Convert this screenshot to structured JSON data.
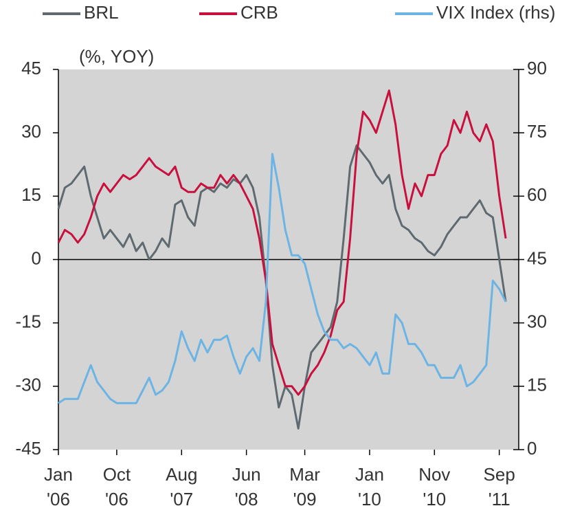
{
  "chart_data": {
    "type": "line",
    "annotation": "(%, YOY)",
    "x": [
      "2006-01",
      "2006-02",
      "2006-03",
      "2006-04",
      "2006-05",
      "2006-06",
      "2006-07",
      "2006-08",
      "2006-09",
      "2006-10",
      "2006-11",
      "2006-12",
      "2007-01",
      "2007-02",
      "2007-03",
      "2007-04",
      "2007-05",
      "2007-06",
      "2007-07",
      "2007-08",
      "2007-09",
      "2007-10",
      "2007-11",
      "2007-12",
      "2008-01",
      "2008-02",
      "2008-03",
      "2008-04",
      "2008-05",
      "2008-06",
      "2008-07",
      "2008-08",
      "2008-09",
      "2008-10",
      "2008-11",
      "2008-12",
      "2009-01",
      "2009-02",
      "2009-03",
      "2009-04",
      "2009-05",
      "2009-06",
      "2009-07",
      "2009-08",
      "2009-09",
      "2009-10",
      "2009-11",
      "2009-12",
      "2010-01",
      "2010-02",
      "2010-03",
      "2010-04",
      "2010-05",
      "2010-06",
      "2010-07",
      "2010-08",
      "2010-09",
      "2010-10",
      "2010-11",
      "2010-12",
      "2011-01",
      "2011-02",
      "2011-03",
      "2011-04",
      "2011-05",
      "2011-06",
      "2011-07",
      "2011-08",
      "2011-09",
      "2011-10"
    ],
    "xticks": [
      {
        "value": "2006-01",
        "label": "Jan '06"
      },
      {
        "value": "2006-10",
        "label": "Oct '06"
      },
      {
        "value": "2007-08",
        "label": "Aug '07"
      },
      {
        "value": "2008-06",
        "label": "Jun '08"
      },
      {
        "value": "2009-03",
        "label": "Mar '09"
      },
      {
        "value": "2010-01",
        "label": "Jan '10"
      },
      {
        "value": "2010-11",
        "label": "Nov '10"
      },
      {
        "value": "2011-09",
        "label": "Sep '11"
      }
    ],
    "ylim": [
      -45,
      45
    ],
    "yticks": [
      -45,
      -30,
      -15,
      0,
      15,
      30,
      45
    ],
    "y2lim": [
      0,
      90
    ],
    "y2ticks": [
      0,
      15,
      30,
      45,
      60,
      75,
      90
    ],
    "series": [
      {
        "name": "BRL",
        "color": "#5f6a70",
        "values": [
          12,
          17,
          18,
          20,
          22,
          15,
          10,
          5,
          7,
          5,
          3,
          6,
          2,
          4,
          0,
          2,
          5,
          3,
          13,
          14,
          10,
          8,
          16,
          17,
          16,
          18,
          17,
          19,
          18,
          20,
          17,
          10,
          -5,
          -25,
          -35,
          -30,
          -32,
          -40,
          -30,
          -22,
          -20,
          -18,
          -16,
          -10,
          5,
          22,
          27,
          25,
          23,
          20,
          18,
          20,
          12,
          8,
          7,
          5,
          4,
          2,
          1,
          3,
          6,
          8,
          10,
          10,
          12,
          14,
          11,
          10,
          0,
          -10
        ]
      },
      {
        "name": "CRB",
        "color": "#c8103e",
        "values": [
          4,
          7,
          6,
          4,
          6,
          10,
          15,
          18,
          16,
          18,
          20,
          19,
          20,
          22,
          24,
          22,
          21,
          20,
          22,
          17,
          16,
          16,
          18,
          17,
          17,
          20,
          18,
          20,
          18,
          15,
          12,
          5,
          -5,
          -20,
          -25,
          -30,
          -30,
          -32,
          -30,
          -27,
          -25,
          -22,
          -18,
          -12,
          -10,
          5,
          25,
          35,
          33,
          30,
          35,
          40,
          32,
          20,
          12,
          18,
          15,
          20,
          20,
          25,
          27,
          33,
          30,
          35,
          30,
          28,
          32,
          28,
          15,
          5
        ]
      },
      {
        "name": "VIX Index (rhs)",
        "color": "#6cb4e4",
        "axis": "y2",
        "values": [
          11,
          12,
          12,
          12,
          16,
          20,
          16,
          14,
          12,
          11,
          11,
          11,
          11,
          14,
          17,
          13,
          14,
          16,
          21,
          28,
          24,
          21,
          26,
          23,
          26,
          26,
          27,
          22,
          18,
          22,
          24,
          21,
          35,
          70,
          62,
          52,
          46,
          46,
          44,
          38,
          32,
          28,
          26,
          26,
          24,
          25,
          24,
          22,
          20,
          23,
          18,
          18,
          32,
          30,
          25,
          25,
          23,
          20,
          20,
          17,
          17,
          17,
          20,
          15,
          16,
          18,
          20,
          40,
          38,
          35
        ]
      }
    ]
  }
}
